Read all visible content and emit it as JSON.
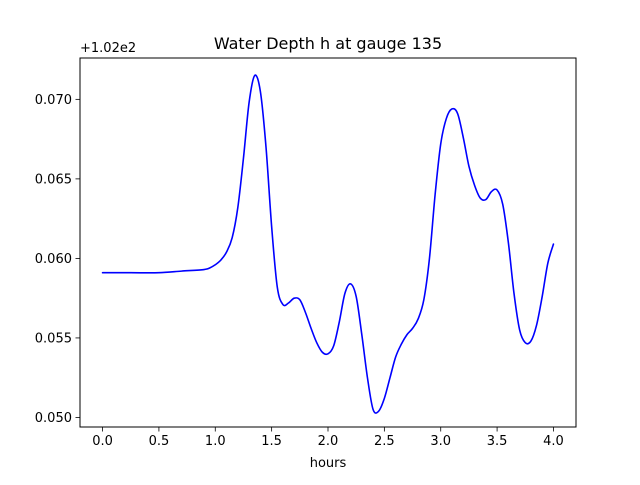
{
  "chart_data": {
    "type": "line",
    "title": "Water Depth h at gauge 135",
    "xlabel": "hours",
    "ylabel": "",
    "y_offset_label": "+1.02e2",
    "y_offset": 102,
    "xlim": [
      -0.2,
      4.2
    ],
    "ylim": [
      0.0494,
      0.0726
    ],
    "xticks": [
      0.0,
      0.5,
      1.0,
      1.5,
      2.0,
      2.5,
      3.0,
      3.5,
      4.0
    ],
    "xtick_labels": [
      "0.0",
      "0.5",
      "1.0",
      "1.5",
      "2.0",
      "2.5",
      "3.0",
      "3.5",
      "4.0"
    ],
    "yticks": [
      0.05,
      0.055,
      0.06,
      0.065,
      0.07
    ],
    "ytick_labels": [
      "0.050",
      "0.055",
      "0.060",
      "0.065",
      "0.070"
    ],
    "grid": false,
    "legend": "none",
    "series": [
      {
        "color": "#0000ff",
        "x": [
          0.0,
          0.25,
          0.5,
          0.7,
          0.9,
          0.95,
          1.0,
          1.05,
          1.1,
          1.15,
          1.2,
          1.25,
          1.3,
          1.35,
          1.4,
          1.45,
          1.5,
          1.55,
          1.6,
          1.65,
          1.7,
          1.75,
          1.8,
          1.85,
          1.9,
          1.95,
          2.0,
          2.05,
          2.1,
          2.15,
          2.2,
          2.25,
          2.3,
          2.35,
          2.4,
          2.45,
          2.5,
          2.55,
          2.6,
          2.65,
          2.7,
          2.75,
          2.8,
          2.85,
          2.9,
          2.95,
          3.0,
          3.05,
          3.1,
          3.15,
          3.2,
          3.25,
          3.3,
          3.35,
          3.4,
          3.45,
          3.5,
          3.55,
          3.6,
          3.65,
          3.7,
          3.75,
          3.8,
          3.85,
          3.9,
          3.95,
          4.0
        ],
        "y": [
          0.0591,
          0.0591,
          0.0591,
          0.0592,
          0.0593,
          0.0594,
          0.0596,
          0.0599,
          0.0604,
          0.0613,
          0.0632,
          0.0663,
          0.0698,
          0.0715,
          0.0705,
          0.067,
          0.062,
          0.0582,
          0.0571,
          0.0572,
          0.0575,
          0.0574,
          0.0566,
          0.0556,
          0.0547,
          0.0541,
          0.054,
          0.0545,
          0.056,
          0.0578,
          0.0584,
          0.0576,
          0.0552,
          0.0525,
          0.0505,
          0.0504,
          0.0512,
          0.0525,
          0.0538,
          0.0546,
          0.0552,
          0.0556,
          0.0562,
          0.0574,
          0.06,
          0.064,
          0.0672,
          0.0688,
          0.0694,
          0.0691,
          0.0676,
          0.0658,
          0.0646,
          0.0638,
          0.0637,
          0.0642,
          0.0643,
          0.0634,
          0.061,
          0.0578,
          0.0555,
          0.0547,
          0.0548,
          0.0558,
          0.0576,
          0.0597,
          0.0609
        ]
      }
    ]
  }
}
